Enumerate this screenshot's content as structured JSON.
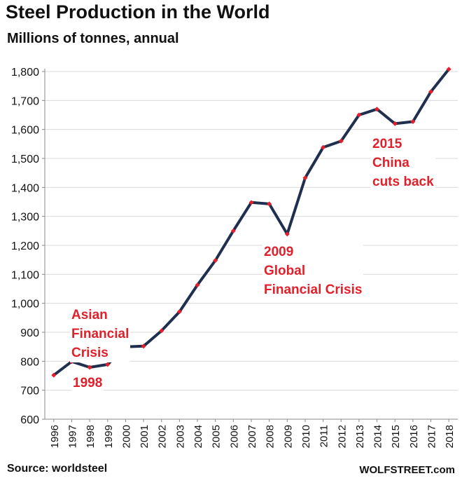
{
  "header": {
    "title": "Steel Production  in the World",
    "subtitle": "Millions of tonnes, annual"
  },
  "footer": {
    "source": "Source: worldsteel",
    "brand": "WOLFSTREET.com"
  },
  "colors": {
    "line": "#1f2f50",
    "marker": "#e0202a",
    "annotation": "#e0202a",
    "grid": "#d9d9d9",
    "axis": "#888888"
  },
  "chart_data": {
    "type": "line",
    "title": "Steel Production  in the World",
    "subtitle": "Millions of tonnes, annual",
    "xlabel": "",
    "ylabel": "",
    "ylim": [
      600,
      1800
    ],
    "yticks": [
      600,
      700,
      800,
      900,
      1000,
      1100,
      1200,
      1300,
      1400,
      1500,
      1600,
      1700,
      1800
    ],
    "ytick_labels": [
      "600",
      "700",
      "800",
      "900",
      "1,000",
      "1,100",
      "1,200",
      "1,300",
      "1,400",
      "1,500",
      "1,600",
      "1,700",
      "1,800"
    ],
    "grid": "horizontal",
    "legend": "none",
    "x": [
      "1996",
      "1997",
      "1998",
      "1999",
      "2000",
      "2001",
      "2002",
      "2003",
      "2004",
      "2005",
      "2006",
      "2007",
      "2008",
      "2009",
      "2010",
      "2011",
      "2012",
      "2013",
      "2014",
      "2015",
      "2016",
      "2017",
      "2018"
    ],
    "series": [
      {
        "values": [
          752,
          799,
          779,
          789,
          850,
          852,
          905,
          971,
          1063,
          1148,
          1250,
          1348,
          1343,
          1239,
          1433,
          1538,
          1560,
          1650,
          1670,
          1620,
          1627,
          1730,
          1808
        ]
      }
    ],
    "annotations": [
      {
        "text": "Asian\nFinancial\nCrisis",
        "year": "1998"
      },
      {
        "text": "1998",
        "year": "1998"
      },
      {
        "text": "2009\nGlobal\nFinancial Crisis",
        "year": "2009"
      },
      {
        "text": "2015\nChina\ncuts back",
        "year": "2015"
      }
    ]
  }
}
